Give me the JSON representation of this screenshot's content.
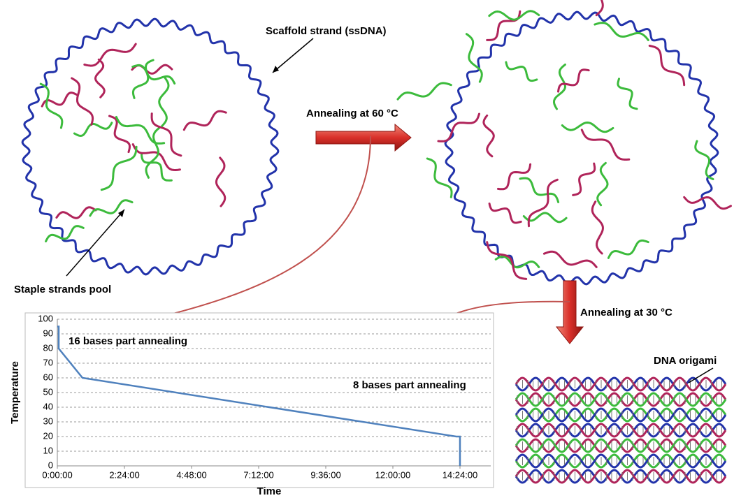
{
  "labels": {
    "scaffold": "Scaffold strand (ssDNA)",
    "staples": "Staple strands pool",
    "anneal60": "Annealing at 60 °C",
    "anneal30": "Annealing at 30 °C",
    "origami": "DNA origami"
  },
  "chart_data": {
    "type": "line",
    "x_label": "Time",
    "y_label": "Temperature",
    "annotations": [
      "16 bases part annealing",
      "8 bases part annealing"
    ],
    "x": [
      0,
      3,
      3,
      54,
      856,
      864,
      864
    ],
    "values": [
      95,
      95,
      80,
      60,
      20,
      20,
      0
    ],
    "color": "#4f81bd",
    "xlim": [
      0,
      930
    ],
    "ylim": [
      0,
      100
    ],
    "xticks": [
      {
        "value": 0,
        "label": "0:00:00"
      },
      {
        "value": 144,
        "label": "2:24:00"
      },
      {
        "value": 288,
        "label": "4:48:00"
      },
      {
        "value": 432,
        "label": "7:12:00"
      },
      {
        "value": 576,
        "label": "9:36:00"
      },
      {
        "value": 720,
        "label": "12:00:00"
      },
      {
        "value": 864,
        "label": "14:24:00"
      }
    ],
    "yticks": [
      0,
      10,
      20,
      30,
      40,
      50,
      60,
      70,
      80,
      90,
      100
    ],
    "grid": true
  }
}
